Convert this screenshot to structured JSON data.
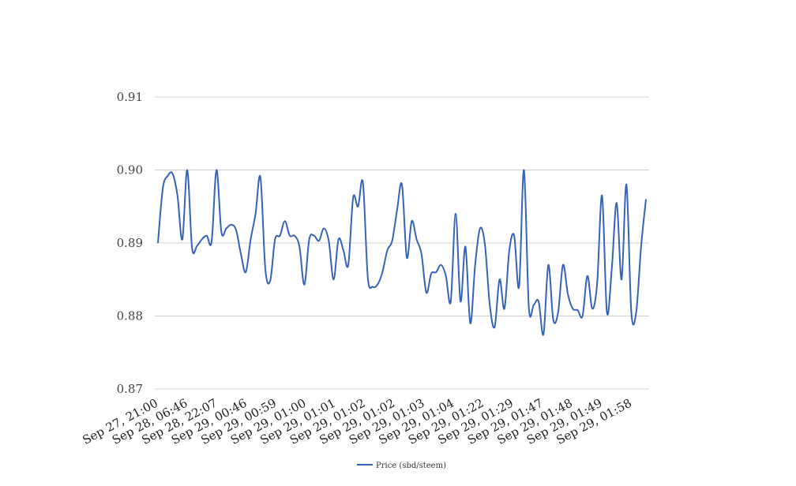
{
  "chart_data": {
    "type": "line",
    "title": "",
    "xlabel": "",
    "ylabel": "",
    "ylim": [
      0.87,
      0.91
    ],
    "y_ticks": [
      "0.87",
      "0.88",
      "0.89",
      "0.90",
      "0.91"
    ],
    "y_tick_values": [
      0.87,
      0.88,
      0.89,
      0.9,
      0.91
    ],
    "grid": "horizontal",
    "legend_position": "bottom-center",
    "x_tick_labels": [
      "Sep 27, 21:00",
      "Sep 28, 06:46",
      "Sep 28, 22:07",
      "Sep 29, 00:46",
      "Sep 29, 00:59",
      "Sep 29, 01:00",
      "Sep 29, 01:01",
      "Sep 29, 01:02",
      "Sep 29, 01:02",
      "Sep 29, 01:03",
      "Sep 29, 01:04",
      "Sep 29, 01:22",
      "Sep 29, 01:29",
      "Sep 29, 01:47",
      "Sep 29, 01:48",
      "Sep 29, 01:49",
      "Sep 29, 01:58"
    ],
    "series": [
      {
        "name": "Price (sbd/steem)",
        "color": "#3563b8",
        "values": [
          0.89,
          0.8975,
          0.8992,
          0.8995,
          0.8965,
          0.8905,
          0.9,
          0.8893,
          0.8896,
          0.8905,
          0.891,
          0.8902,
          0.9,
          0.8915,
          0.892,
          0.8925,
          0.8918,
          0.8885,
          0.886,
          0.8905,
          0.894,
          0.899,
          0.8865,
          0.8848,
          0.8905,
          0.891,
          0.893,
          0.891,
          0.891,
          0.8895,
          0.8843,
          0.8905,
          0.891,
          0.8903,
          0.892,
          0.8903,
          0.885,
          0.8905,
          0.889,
          0.887,
          0.8962,
          0.895,
          0.8983,
          0.8853,
          0.884,
          0.8843,
          0.886,
          0.889,
          0.8903,
          0.8945,
          0.898,
          0.888,
          0.893,
          0.8905,
          0.8885,
          0.8832,
          0.8858,
          0.886,
          0.887,
          0.8855,
          0.882,
          0.894,
          0.882,
          0.8895,
          0.879,
          0.887,
          0.892,
          0.8898,
          0.8815,
          0.8785,
          0.885,
          0.881,
          0.889,
          0.891,
          0.884,
          0.9,
          0.8812,
          0.8815,
          0.882,
          0.8775,
          0.887,
          0.8795,
          0.8805,
          0.887,
          0.883,
          0.881,
          0.8808,
          0.88,
          0.8855,
          0.881,
          0.8845,
          0.8965,
          0.8805,
          0.8865,
          0.8955,
          0.885,
          0.898,
          0.8805,
          0.8805,
          0.8895,
          0.896
        ]
      }
    ]
  }
}
